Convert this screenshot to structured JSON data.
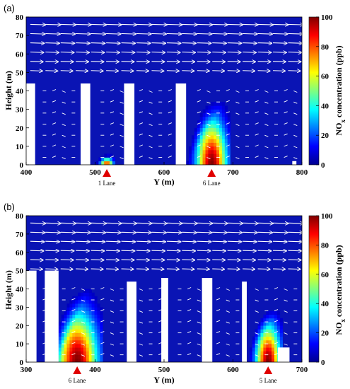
{
  "chart_data": [
    {
      "type": "heatmap",
      "panel_label": "(a)",
      "xlabel": "Y (m)",
      "ylabel": "Height (m)",
      "xlim": [
        400,
        800
      ],
      "ylim": [
        0,
        80
      ],
      "x_ticks": [
        "400",
        "500",
        "600",
        "700",
        "800"
      ],
      "y_ticks": [
        "0",
        "10",
        "20",
        "30",
        "40",
        "50",
        "60",
        "70",
        "80"
      ],
      "colorbar": {
        "label_main": "NO",
        "label_sub": "x",
        "label_rest": " concentration (ppb)",
        "ticks": [
          "0",
          "20",
          "40",
          "60",
          "80",
          "100"
        ],
        "range": [
          0,
          100
        ]
      },
      "buildings": [
        {
          "x0": 400,
          "x1": 413,
          "height": 44
        },
        {
          "x0": 479,
          "x1": 493,
          "height": 44
        },
        {
          "x0": 542,
          "x1": 557,
          "height": 44
        },
        {
          "x0": 617,
          "x1": 632,
          "height": 44
        },
        {
          "x0": 786,
          "x1": 792,
          "height": 2
        }
      ],
      "plumes": [
        {
          "x_source": 517,
          "x_wall": 493,
          "width": 22,
          "height": 6,
          "peak": 85
        },
        {
          "x_source": 669,
          "x_wall": 632,
          "width": 52,
          "height": 38,
          "peak": 100
        }
      ],
      "lanes": [
        {
          "x": 517,
          "label": "1 Lane"
        },
        {
          "x": 669,
          "label": "6 Lane"
        }
      ]
    },
    {
      "type": "heatmap",
      "panel_label": "(b)",
      "xlabel": "Y (m)",
      "ylabel": "Height (m)",
      "xlim": [
        300,
        700
      ],
      "ylim": [
        0,
        80
      ],
      "x_ticks": [
        "300",
        "400",
        "500",
        "600",
        "700"
      ],
      "y_ticks": [
        "0",
        "10",
        "20",
        "30",
        "40",
        "50",
        "60",
        "70",
        "80"
      ],
      "colorbar": {
        "label_main": "NO",
        "label_sub": "x",
        "label_rest": " concentration (ppb)",
        "ticks": [
          "0",
          "20",
          "40",
          "60",
          "80",
          "100"
        ],
        "range": [
          0,
          100
        ]
      },
      "buildings": [
        {
          "x0": 300,
          "x1": 315,
          "height": 50
        },
        {
          "x0": 327,
          "x1": 347,
          "height": 50
        },
        {
          "x0": 446,
          "x1": 460,
          "height": 44
        },
        {
          "x0": 496,
          "x1": 506,
          "height": 46
        },
        {
          "x0": 555,
          "x1": 570,
          "height": 46
        },
        {
          "x0": 613,
          "x1": 620,
          "height": 44
        },
        {
          "x0": 665,
          "x1": 682,
          "height": 8
        }
      ],
      "plumes": [
        {
          "x_source": 374,
          "x_wall": 347,
          "width": 70,
          "height": 42,
          "peak": 100
        },
        {
          "x_source": 651,
          "x_wall": 620,
          "width": 42,
          "height": 32,
          "peak": 100
        }
      ],
      "lanes": [
        {
          "x": 374,
          "label": "6 Lane"
        },
        {
          "x": 651,
          "label": "5 Lane"
        }
      ]
    }
  ]
}
